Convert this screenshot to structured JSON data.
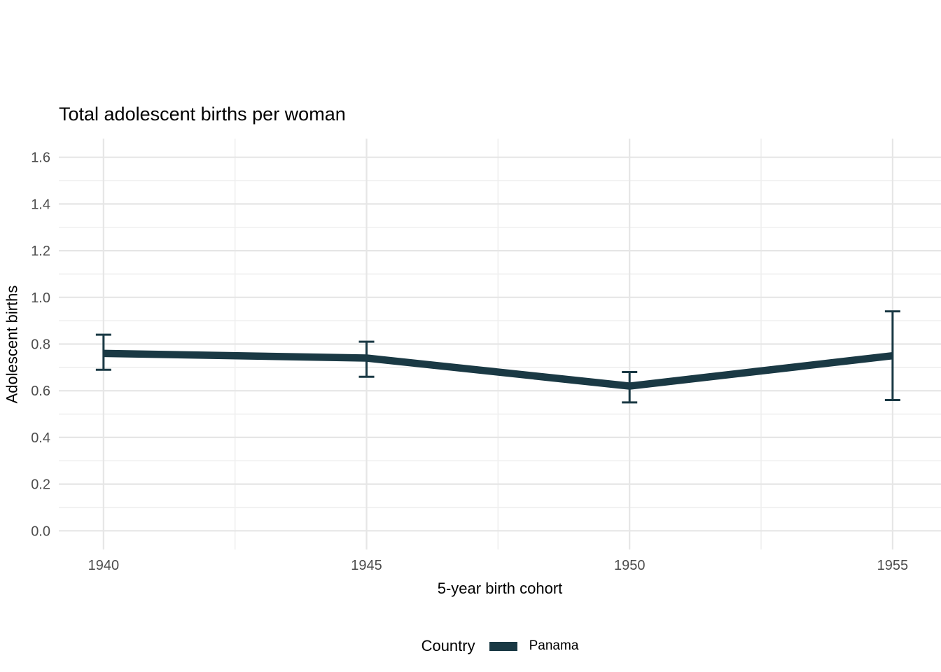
{
  "chart_data": {
    "type": "line",
    "title": "Total adolescent births per woman",
    "xlabel": "5-year birth cohort",
    "ylabel": "Adolescent births",
    "x": [
      1940,
      1945,
      1950,
      1955
    ],
    "series": [
      {
        "name": "Panama",
        "color": "#1a3944",
        "values": [
          0.76,
          0.74,
          0.62,
          0.75
        ],
        "ci_low": [
          0.69,
          0.66,
          0.55,
          0.56
        ],
        "ci_high": [
          0.84,
          0.81,
          0.68,
          0.94
        ]
      }
    ],
    "xlim": [
      1939.15,
      1955.92
    ],
    "ylim": [
      -0.08,
      1.68
    ],
    "y_major_ticks": [
      0.0,
      0.2,
      0.4,
      0.6,
      0.8,
      1.0,
      1.2,
      1.4,
      1.6
    ],
    "y_minor_ticks": [
      0.1,
      0.3,
      0.5,
      0.7,
      0.9,
      1.1,
      1.3,
      1.5
    ],
    "x_major_ticks": [
      1940,
      1945,
      1950,
      1955
    ],
    "x_minor_ticks": [
      1942.5,
      1947.5,
      1952.5
    ],
    "grid": true,
    "legend": {
      "title": "Country",
      "position": "bottom",
      "entries": [
        {
          "label": "Panama",
          "color": "#1a3944"
        }
      ]
    }
  },
  "colors": {
    "line": "#1a3944",
    "grid_major": "#e6e6e6",
    "grid_minor": "#efefef",
    "tick_label": "#4d4d4d",
    "text": "#000000",
    "background": "#ffffff"
  }
}
